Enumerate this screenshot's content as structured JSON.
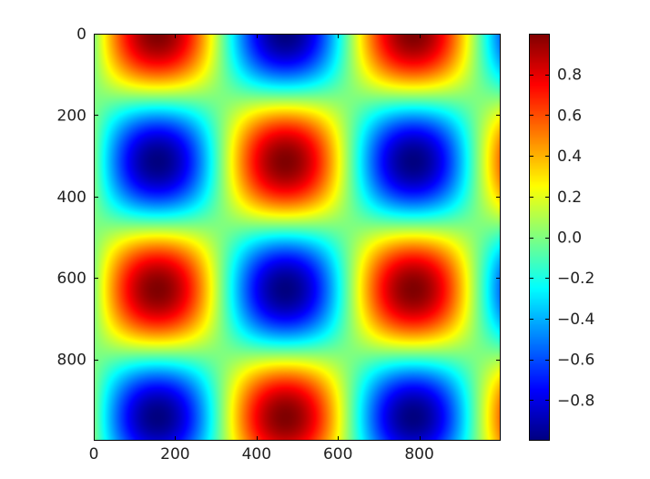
{
  "chart_data": {
    "type": "heatmap",
    "title": "",
    "xlabel": "",
    "ylabel": "",
    "function": "sin(x) * cos(y)",
    "grid_size": [
      1000,
      1000
    ],
    "x_step": 0.01,
    "y_step": 0.01,
    "xlim": [
      0,
      1000
    ],
    "ylim": [
      1000,
      0
    ],
    "x_ticks": [
      0,
      200,
      400,
      600,
      800
    ],
    "x_tick_labels": [
      "0",
      "200",
      "400",
      "600",
      "800"
    ],
    "y_ticks": [
      0,
      200,
      400,
      600,
      800
    ],
    "y_tick_labels": [
      "0",
      "200",
      "400",
      "600",
      "800"
    ],
    "colormap": "jet",
    "colorbar": {
      "vmin": -1.0,
      "vmax": 1.0,
      "ticks": [
        0.8,
        0.6,
        0.4,
        0.2,
        0.0,
        -0.2,
        -0.4,
        -0.6,
        -0.8
      ],
      "tick_labels": [
        "0.8",
        "0.6",
        "0.4",
        "0.2",
        "0.0",
        "−0.2",
        "−0.4",
        "−0.6",
        "−0.8"
      ]
    },
    "grid": false
  }
}
